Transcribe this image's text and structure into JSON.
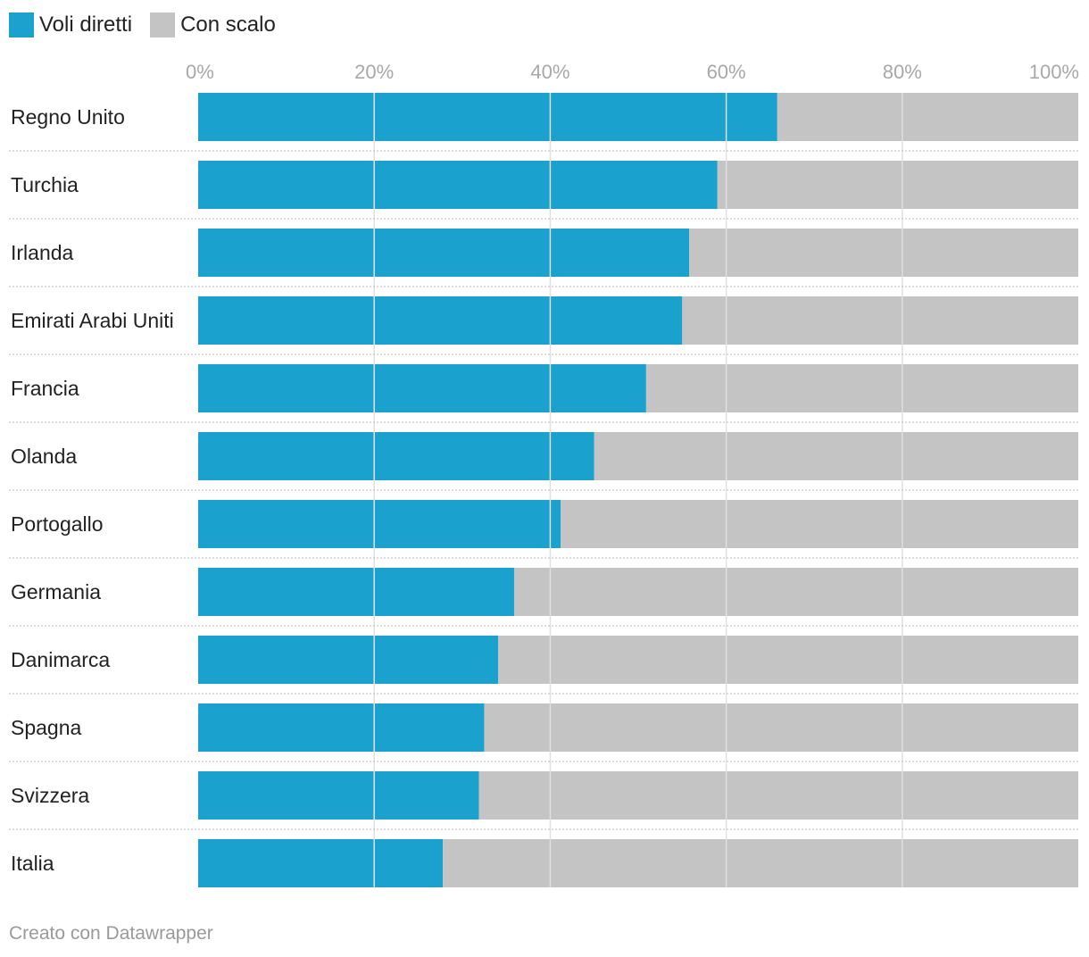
{
  "legend": {
    "direct_label": "Voli diretti",
    "connection_label": "Con scalo"
  },
  "colors": {
    "direct": "#1aa1cd",
    "connection": "#c4c4c4",
    "gridline": "#e0e0e0",
    "separator": "#bbbbbb"
  },
  "chart_data": {
    "type": "bar",
    "orientation": "horizontal",
    "stacked": true,
    "categories": [
      "Regno Unito",
      "Turchia",
      "Irlanda",
      "Emirati Arabi Uniti",
      "Francia",
      "Olanda",
      "Portogallo",
      "Germania",
      "Danimarca",
      "Spagna",
      "Svizzera",
      "Italia"
    ],
    "series": [
      {
        "name": "Voli diretti",
        "values": [
          65.8,
          59.0,
          55.8,
          55.0,
          50.9,
          45.0,
          41.2,
          35.9,
          34.1,
          32.5,
          31.9,
          27.8
        ]
      },
      {
        "name": "Con scalo",
        "values": [
          34.2,
          41.0,
          44.2,
          45.0,
          49.1,
          55.0,
          58.8,
          64.1,
          65.9,
          67.5,
          68.1,
          72.2
        ]
      }
    ],
    "xlim": [
      0,
      100
    ],
    "ticks": [
      0,
      20,
      40,
      60,
      80,
      100
    ],
    "tick_labels": [
      "0%",
      "20%",
      "40%",
      "60%",
      "80%",
      "100%"
    ],
    "legend_position": "top-left",
    "grid": true
  },
  "footer": {
    "credit": "Creato con Datawrapper"
  }
}
